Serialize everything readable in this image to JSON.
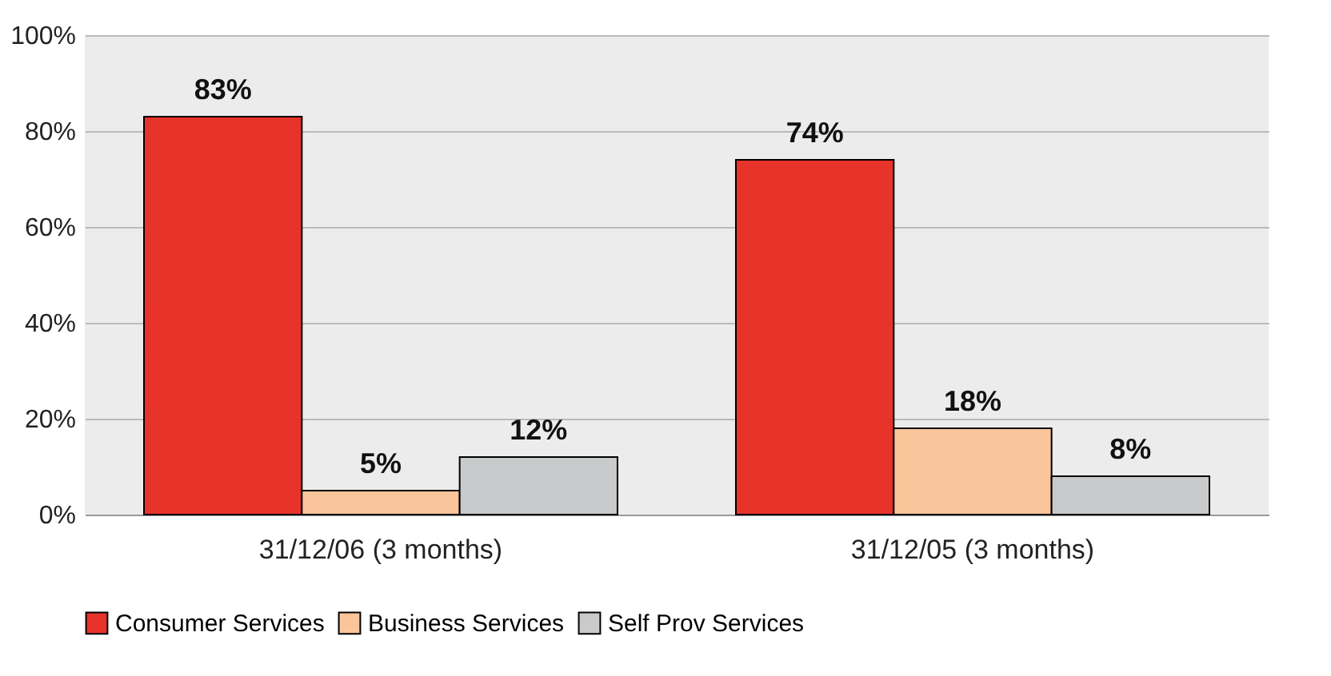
{
  "chart_data": {
    "type": "bar",
    "categories": [
      "31/12/06 (3 months)",
      "31/12/05 (3 months)"
    ],
    "series": [
      {
        "name": "Consumer Services",
        "color": "#e8332b",
        "values": [
          83,
          74
        ],
        "value_labels": [
          "83%",
          "74%"
        ]
      },
      {
        "name": "Business Services",
        "color": "#fbc59b",
        "values": [
          5,
          18
        ],
        "value_labels": [
          "5%",
          "18%"
        ]
      },
      {
        "name": "Self Prov Services",
        "color": "#c9cacc",
        "values": [
          12,
          8
        ],
        "value_labels": [
          "12%",
          "8%"
        ]
      }
    ],
    "ylim": [
      0,
      100
    ],
    "yticks": [
      {
        "value": 0,
        "label": "0%"
      },
      {
        "value": 20,
        "label": "20%"
      },
      {
        "value": 40,
        "label": "40%"
      },
      {
        "value": 60,
        "label": "60%"
      },
      {
        "value": 80,
        "label": "80%"
      },
      {
        "value": 100,
        "label": "100%"
      }
    ],
    "grid": "y",
    "legend": "bottom"
  }
}
